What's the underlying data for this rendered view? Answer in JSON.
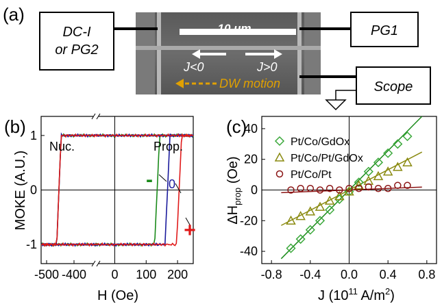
{
  "colors": {
    "green": "#1a8a1a",
    "blue": "#1a1a9c",
    "red": "#e01a1a",
    "gold": "#e0a000",
    "olive": "#8a8a10",
    "maroon": "#8a1414",
    "dmarker": "#3aa83a"
  },
  "panel_a": {
    "label": "(a)",
    "box_left_line1": "DC-I",
    "box_left_line2": "or PG2",
    "box_pg1": "PG1",
    "box_scope": "Scope",
    "scale_bar": "10 μm",
    "j_neg": "J<0",
    "j_pos": "J>0",
    "dw_motion": "DW motion",
    "icons": [
      "ground-icon",
      "arrow-left-icon",
      "arrow-right-icon"
    ]
  },
  "chart_data": [
    {
      "type": "line",
      "panel": "(b)",
      "xlabel": "H (Oe)",
      "ylabel": "MOKE (A.U.)",
      "x_ticks": [
        "-500",
        "-400",
        "0",
        "100",
        "200"
      ],
      "y_ticks": [
        "1",
        "0",
        "-1"
      ],
      "annotations": [
        "Nuc.",
        "Prop.",
        "-",
        "0",
        "+"
      ],
      "axis_break": true,
      "xlim_left_segment": [
        -520,
        -320
      ],
      "xlim_right_segment": [
        -60,
        250
      ],
      "ylim": [
        -1.35,
        1.35
      ],
      "series": [
        {
          "name": "-",
          "color": "#1a8a1a",
          "nucleation_field": -455,
          "propagation_field": 135
        },
        {
          "name": "0",
          "color": "#1a1a9c",
          "nucleation_field": -455,
          "propagation_field": 168
        },
        {
          "name": "+",
          "color": "#e01a1a",
          "nucleation_field": -455,
          "propagation_field": 205
        }
      ]
    },
    {
      "type": "scatter",
      "panel": "(c)",
      "xlabel": "J (10",
      "xlabel_sup1": "11",
      "xlabel_mid": " A/m",
      "xlabel_sup2": "2",
      "xlabel_end": ")",
      "ylabel": "ΔH",
      "ylabel_sub": "prop",
      "ylabel_end": " (Oe)",
      "x_ticks": [
        "-0.8",
        "-0.4",
        "0.0",
        "0.4",
        "0.8"
      ],
      "y_ticks": [
        "40",
        "20",
        "0",
        "-20",
        "-40"
      ],
      "xlim": [
        -0.9,
        0.9
      ],
      "ylim": [
        -48,
        48
      ],
      "series": [
        {
          "name": "Pt/Co/GdOx",
          "marker": "diamond",
          "color": "#3aa83a",
          "fit_slope": 64,
          "x": [
            -0.6,
            -0.5,
            -0.4,
            -0.3,
            -0.2,
            -0.1,
            0.0,
            0.1,
            0.2,
            0.3,
            0.4,
            0.5,
            0.6
          ],
          "y": [
            -38,
            -32,
            -26,
            -20,
            -13,
            -6,
            -1,
            5,
            12,
            18,
            24,
            30,
            35
          ]
        },
        {
          "name": "Pt/Co/Pt/GdOx",
          "marker": "triangle",
          "color": "#8a8a10",
          "fit_slope": 33,
          "x": [
            -0.6,
            -0.5,
            -0.4,
            -0.3,
            -0.2,
            -0.1,
            0.0,
            0.1,
            0.2,
            0.3,
            0.4,
            0.5,
            0.6
          ],
          "y": [
            -20,
            -17,
            -14,
            -11,
            -7,
            -4,
            -1,
            3,
            6,
            9,
            12,
            15,
            18
          ]
        },
        {
          "name": "Pt/Co/Pt",
          "marker": "circle",
          "color": "#8a1414",
          "fit_slope": 2.5,
          "x": [
            -0.6,
            -0.5,
            -0.4,
            -0.3,
            -0.2,
            -0.1,
            0.0,
            0.1,
            0.2,
            0.3,
            0.4,
            0.5,
            0.6
          ],
          "y": [
            0,
            1,
            1,
            0,
            1,
            0,
            1,
            1,
            2,
            1,
            1,
            3,
            3
          ]
        }
      ]
    }
  ]
}
